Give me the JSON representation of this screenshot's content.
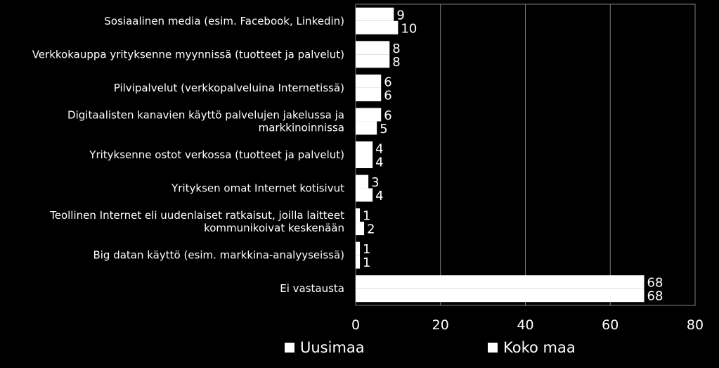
{
  "chart_data": {
    "type": "bar",
    "orientation": "horizontal",
    "categories": [
      "Sosiaalinen media (esim. Facebook, Linkedin)",
      "Verkkokauppa yrityksenne myynnissä (tuotteet ja palvelut)",
      "Pilvipalvelut  (verkkopalveluina Internetissä)",
      "Digitaalisten kanavien käyttö palvelujen jakelussa ja markkinoinnissa",
      "Yrityksenne ostot verkossa (tuotteet ja palvelut)",
      "Yrityksen omat Internet kotisivut",
      "Teollinen Internet eli uudenlaiset ratkaisut, joilla laitteet kommunikoivat keskenään",
      "Big datan käyttö (esim. markkina-analyyseissä)",
      "Ei vastausta"
    ],
    "category_lines": [
      [
        "Sosiaalinen media (esim. Facebook, Linkedin)"
      ],
      [
        "Verkkokauppa yrityksenne myynnissä (tuotteet ja palvelut)"
      ],
      [
        "Pilvipalvelut  (verkkopalveluina Internetissä)"
      ],
      [
        "Digitaalisten kanavien käyttö palvelujen jakelussa ja",
        "markkinoinnissa"
      ],
      [
        "Yrityksenne ostot verkossa (tuotteet ja palvelut)"
      ],
      [
        "Yrityksen omat Internet kotisivut"
      ],
      [
        "Teollinen Internet eli uudenlaiset ratkaisut, joilla laitteet",
        "kommunikoivat keskenään"
      ],
      [
        "Big datan käyttö (esim. markkina-analyyseissä)"
      ],
      [
        "Ei vastausta"
      ]
    ],
    "series": [
      {
        "name": "Uusimaa",
        "values": [
          9,
          8,
          6,
          6,
          4,
          3,
          1,
          1,
          68
        ]
      },
      {
        "name": "Koko maa",
        "values": [
          10,
          8,
          6,
          5,
          4,
          4,
          2,
          1,
          68
        ]
      }
    ],
    "xlim": [
      0,
      80
    ],
    "xticks": [
      "0",
      "20",
      "40",
      "60",
      "80"
    ],
    "grid": true,
    "legend_position": "bottom",
    "colors": {
      "background": "#000000",
      "bars": "#ffffff",
      "text": "#ffffff",
      "grid": "#808080"
    }
  },
  "legend": {
    "items": [
      "Uusimaa",
      "Koko maa"
    ]
  }
}
